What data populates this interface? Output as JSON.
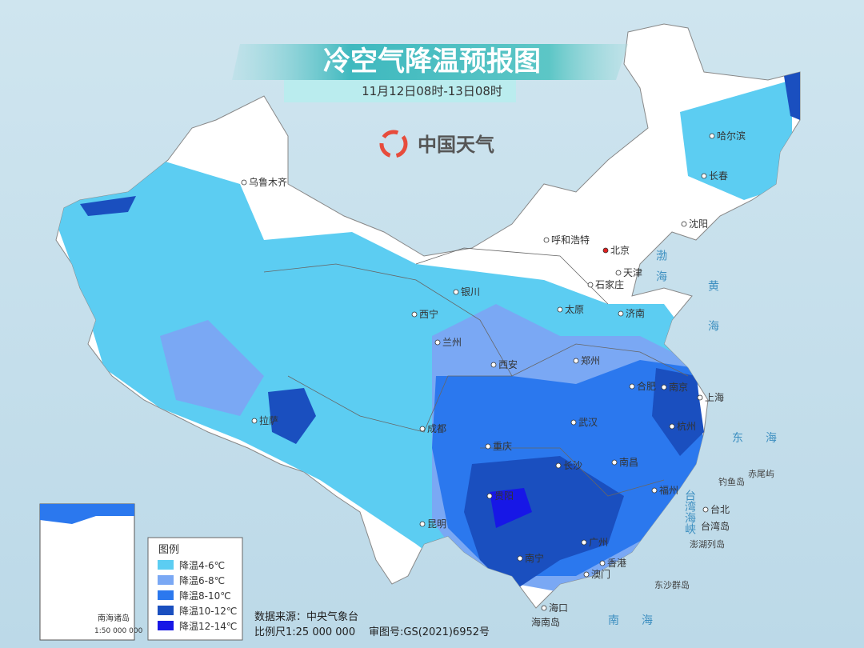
{
  "header": {
    "title": "冷空气降温预报图",
    "subtitle": "11月12日08时-13日08时",
    "brand": "中国天气"
  },
  "cities": [
    "哈尔滨",
    "长春",
    "沈阳",
    "乌鲁木齐",
    "呼和浩特",
    "北京",
    "天津",
    "石家庄",
    "太原",
    "济南",
    "银川",
    "西宁",
    "兰州",
    "西安",
    "郑州",
    "合肥",
    "南京",
    "上海",
    "杭州",
    "武汉",
    "成都",
    "重庆",
    "长沙",
    "南昌",
    "福州",
    "台北",
    "贵阳",
    "昆明",
    "南宁",
    "广州",
    "香港",
    "澳门",
    "海口",
    "拉萨"
  ],
  "places": [
    "渤海",
    "黄海",
    "东海",
    "南海",
    "台湾海峡",
    "赤尾屿",
    "钓鱼岛",
    "台湾岛",
    "澎湖列岛",
    "东沙群岛",
    "海南岛"
  ],
  "legend": {
    "title": "图例",
    "items": [
      {
        "label": "降温4-6℃",
        "color": "#5ccdf2"
      },
      {
        "label": "降温6-8℃",
        "color": "#7aa8f4"
      },
      {
        "label": "降温8-10℃",
        "color": "#2b78ee"
      },
      {
        "label": "降温10-12℃",
        "color": "#1a4fbf"
      },
      {
        "label": "降温12-14℃",
        "color": "#1717e6"
      }
    ]
  },
  "footer": {
    "source": "数据来源：中央气象台",
    "scale": "比例尺1:25 000 000",
    "approval": "审图号:GS(2021)6952号"
  },
  "inset": {
    "label": "南海诸岛",
    "scale": "1:50 000 000"
  }
}
